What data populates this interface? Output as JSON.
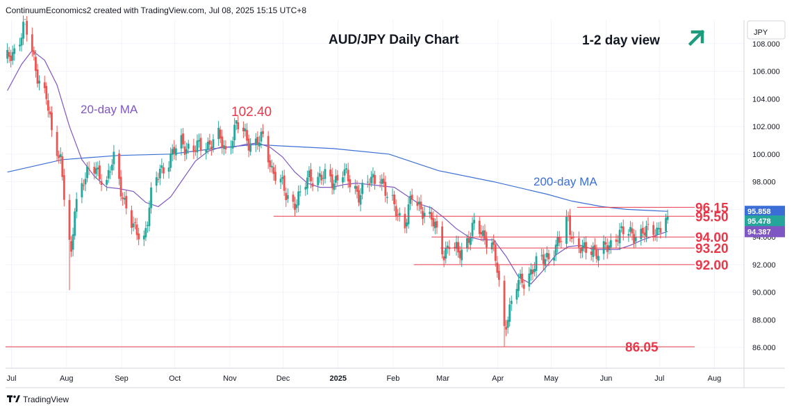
{
  "header": {
    "credit": "ContinuumEconomics2 created with TradingView.com, Jul 08, 2025 15:15 UTC+8",
    "currency": "JPY",
    "brand": "TradingView",
    "brand_icon": "tradingview-logo-icon"
  },
  "chart_data": {
    "type": "candlestick",
    "title": "AUD/JPY Daily Chart",
    "view_label": "1-2 day view",
    "view_icon": "arrow-up-right-icon",
    "x_ticks": [
      "Jul",
      "Aug",
      "Sep",
      "Oct",
      "Nov",
      "Dec",
      "2025",
      "Feb",
      "Mar",
      "Apr",
      "May",
      "Jun",
      "Jul",
      "Aug"
    ],
    "y_ticks": [
      "86.000",
      "88.000",
      "90.000",
      "92.000",
      "94.000",
      "96.000",
      "98.000",
      "100.000",
      "102.000",
      "104.000",
      "106.000",
      "108.000"
    ],
    "ylim": [
      84.5,
      109.7
    ],
    "grid": true,
    "colors": {
      "up": "#26a69a",
      "down": "#ef5350",
      "ma20": "#7e57c2",
      "ma200": "#3b6fd6",
      "levels": "#e8394a"
    },
    "annotations": {
      "peak": "102.40",
      "ma20_label": "20-day MA",
      "ma200_label": "200-day MA"
    },
    "levels": [
      {
        "label": "96.15",
        "value": 96.15
      },
      {
        "label": "95.50",
        "value": 95.5
      },
      {
        "label": "94.00",
        "value": 94.0
      },
      {
        "label": "93.20",
        "value": 93.2
      },
      {
        "label": "92.00",
        "value": 92.0
      },
      {
        "label": "86.05",
        "value": 86.05
      }
    ],
    "price_tags": [
      {
        "label": "95.858",
        "value": 95.858,
        "color": "#3b6fd6"
      },
      {
        "label": "95.478",
        "value": 95.478,
        "color": "#26a69a"
      },
      {
        "label": "94.387",
        "value": 94.387,
        "color": "#7e57c2"
      }
    ],
    "price_path": [
      [
        "2024-07-01",
        106.8
      ],
      [
        "2024-07-05",
        107.6
      ],
      [
        "2024-07-11",
        109.3
      ],
      [
        "2024-07-15",
        107.4
      ],
      [
        "2024-07-19",
        105.3
      ],
      [
        "2024-07-23",
        104.0
      ],
      [
        "2024-07-26",
        101.5
      ],
      [
        "2024-07-31",
        99.8
      ],
      [
        "2024-08-02",
        97.0
      ],
      [
        "2024-08-05",
        90.2
      ],
      [
        "2024-08-08",
        96.3
      ],
      [
        "2024-08-13",
        98.3
      ],
      [
        "2024-08-20",
        98.9
      ],
      [
        "2024-08-26",
        98.0
      ],
      [
        "2024-08-30",
        99.6
      ],
      [
        "2024-09-05",
        96.6
      ],
      [
        "2024-09-10",
        94.5
      ],
      [
        "2024-09-16",
        94.0
      ],
      [
        "2024-09-20",
        96.9
      ],
      [
        "2024-09-25",
        98.8
      ],
      [
        "2024-10-01",
        99.8
      ],
      [
        "2024-10-07",
        100.8
      ],
      [
        "2024-10-14",
        100.3
      ],
      [
        "2024-10-21",
        100.7
      ],
      [
        "2024-10-28",
        101.2
      ],
      [
        "2024-11-01",
        100.2
      ],
      [
        "2024-11-07",
        102.1
      ],
      [
        "2024-11-12",
        101.3
      ],
      [
        "2024-11-15",
        100.8
      ],
      [
        "2024-11-22",
        101.0
      ],
      [
        "2024-11-27",
        99.0
      ],
      [
        "2024-12-02",
        98.0
      ],
      [
        "2024-12-05",
        96.9
      ],
      [
        "2024-12-09",
        96.5
      ],
      [
        "2024-12-13",
        97.0
      ],
      [
        "2024-12-18",
        98.3
      ],
      [
        "2024-12-24",
        98.4
      ],
      [
        "2024-12-31",
        98.0
      ],
      [
        "2025-01-06",
        98.8
      ],
      [
        "2025-01-10",
        97.8
      ],
      [
        "2025-01-15",
        97.2
      ],
      [
        "2025-01-21",
        97.9
      ],
      [
        "2025-01-27",
        98.6
      ],
      [
        "2025-01-31",
        96.8
      ],
      [
        "2025-02-05",
        96.0
      ],
      [
        "2025-02-10",
        95.0
      ],
      [
        "2025-02-14",
        96.8
      ],
      [
        "2025-02-21",
        95.9
      ],
      [
        "2025-02-27",
        94.7
      ],
      [
        "2025-03-04",
        92.9
      ],
      [
        "2025-03-07",
        93.4
      ],
      [
        "2025-03-12",
        92.8
      ],
      [
        "2025-03-18",
        94.0
      ],
      [
        "2025-03-21",
        94.7
      ],
      [
        "2025-03-26",
        94.2
      ],
      [
        "2025-03-31",
        93.6
      ],
      [
        "2025-04-03",
        91.5
      ],
      [
        "2025-04-07",
        87.3
      ],
      [
        "2025-04-09",
        88.5
      ],
      [
        "2025-04-14",
        90.5
      ],
      [
        "2025-04-18",
        90.8
      ],
      [
        "2025-04-23",
        91.8
      ],
      [
        "2025-04-29",
        92.3
      ],
      [
        "2025-05-05",
        93.2
      ],
      [
        "2025-05-09",
        93.7
      ],
      [
        "2025-05-13",
        95.4
      ],
      [
        "2025-05-16",
        93.7
      ],
      [
        "2025-05-21",
        92.9
      ],
      [
        "2025-05-27",
        93.3
      ],
      [
        "2025-05-30",
        92.7
      ],
      [
        "2025-06-04",
        93.2
      ],
      [
        "2025-06-10",
        94.3
      ],
      [
        "2025-06-16",
        94.2
      ],
      [
        "2025-06-20",
        94.3
      ],
      [
        "2025-06-26",
        94.3
      ],
      [
        "2025-07-01",
        94.5
      ],
      [
        "2025-07-04",
        94.8
      ],
      [
        "2025-07-08",
        95.5
      ]
    ],
    "ma20_path": [
      [
        "2024-07-01",
        104.6
      ],
      [
        "2024-07-09",
        106.5
      ],
      [
        "2024-07-15",
        107.5
      ],
      [
        "2024-07-22",
        106.8
      ],
      [
        "2024-07-29",
        105.0
      ],
      [
        "2024-08-05",
        102.0
      ],
      [
        "2024-08-12",
        99.6
      ],
      [
        "2024-08-19",
        98.4
      ],
      [
        "2024-08-26",
        97.6
      ],
      [
        "2024-09-02",
        97.5
      ],
      [
        "2024-09-10",
        97.3
      ],
      [
        "2024-09-17",
        96.5
      ],
      [
        "2024-09-24",
        96.2
      ],
      [
        "2024-10-01",
        96.9
      ],
      [
        "2024-10-08",
        98.2
      ],
      [
        "2024-10-15",
        99.5
      ],
      [
        "2024-10-22",
        100.2
      ],
      [
        "2024-10-29",
        100.5
      ],
      [
        "2024-11-05",
        100.5
      ],
      [
        "2024-11-12",
        100.7
      ],
      [
        "2024-11-19",
        100.8
      ],
      [
        "2024-11-26",
        100.5
      ],
      [
        "2024-12-03",
        99.8
      ],
      [
        "2024-12-10",
        98.7
      ],
      [
        "2024-12-17",
        97.9
      ],
      [
        "2024-12-24",
        97.6
      ],
      [
        "2024-12-31",
        97.6
      ],
      [
        "2025-01-07",
        97.8
      ],
      [
        "2025-01-14",
        97.9
      ],
      [
        "2025-01-21",
        97.8
      ],
      [
        "2025-01-28",
        97.7
      ],
      [
        "2025-02-04",
        97.6
      ],
      [
        "2025-02-11",
        97.0
      ],
      [
        "2025-02-18",
        96.4
      ],
      [
        "2025-02-25",
        96.1
      ],
      [
        "2025-03-04",
        95.4
      ],
      [
        "2025-03-11",
        94.6
      ],
      [
        "2025-03-18",
        94.0
      ],
      [
        "2025-03-25",
        93.8
      ],
      [
        "2025-04-01",
        93.8
      ],
      [
        "2025-04-08",
        92.6
      ],
      [
        "2025-04-15",
        91.1
      ],
      [
        "2025-04-22",
        90.6
      ],
      [
        "2025-04-29",
        91.6
      ],
      [
        "2025-05-06",
        92.7
      ],
      [
        "2025-05-13",
        93.3
      ],
      [
        "2025-05-20",
        93.4
      ],
      [
        "2025-05-27",
        93.1
      ],
      [
        "2025-06-03",
        93.1
      ],
      [
        "2025-06-10",
        93.1
      ],
      [
        "2025-06-17",
        93.4
      ],
      [
        "2025-06-24",
        93.8
      ],
      [
        "2025-07-01",
        94.1
      ],
      [
        "2025-07-08",
        94.4
      ]
    ],
    "ma200_path": [
      [
        "2024-07-01",
        98.7
      ],
      [
        "2024-08-01",
        99.6
      ],
      [
        "2024-09-01",
        99.9
      ],
      [
        "2024-10-01",
        100.0
      ],
      [
        "2024-11-01",
        100.5
      ],
      [
        "2024-11-18",
        100.7
      ],
      [
        "2024-12-01",
        100.6
      ],
      [
        "2025-01-01",
        100.4
      ],
      [
        "2025-02-01",
        100.0
      ],
      [
        "2025-02-15",
        99.4
      ],
      [
        "2025-03-01",
        98.8
      ],
      [
        "2025-04-01",
        98.0
      ],
      [
        "2025-05-01",
        97.1
      ],
      [
        "2025-05-15",
        96.6
      ],
      [
        "2025-06-01",
        96.2
      ],
      [
        "2025-06-15",
        96.0
      ],
      [
        "2025-07-01",
        95.9
      ],
      [
        "2025-07-08",
        95.86
      ]
    ]
  }
}
